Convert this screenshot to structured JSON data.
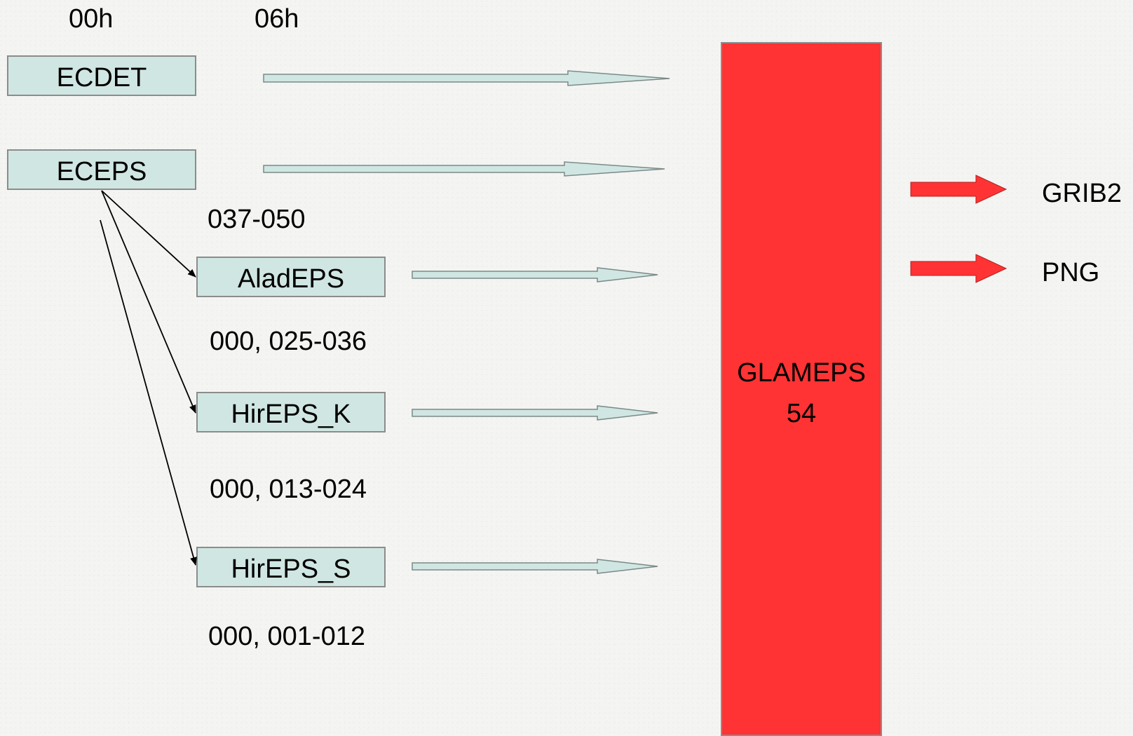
{
  "time_labels": {
    "t00": "00h",
    "t06": "06h"
  },
  "sources": {
    "ecdet": "ECDET",
    "eceps": "ECEPS",
    "aladeps": "AladEPS",
    "hireps_k": "HirEPS_K",
    "hireps_s": "HirEPS_S"
  },
  "member_ranges": {
    "eceps": "037-050",
    "aladeps": "000, 025-036",
    "hireps_k": "000, 013-024",
    "hireps_s": "000, 001-012"
  },
  "glameps": {
    "name": "GLAMEPS",
    "count": "54"
  },
  "outputs": {
    "grib2": "GRIB2",
    "png": "PNG"
  },
  "colors": {
    "source_box": "#d0e6e2",
    "glameps": "#ff3333",
    "output_arrow": "#ff3333",
    "input_arrow": "#d0e6e2"
  }
}
